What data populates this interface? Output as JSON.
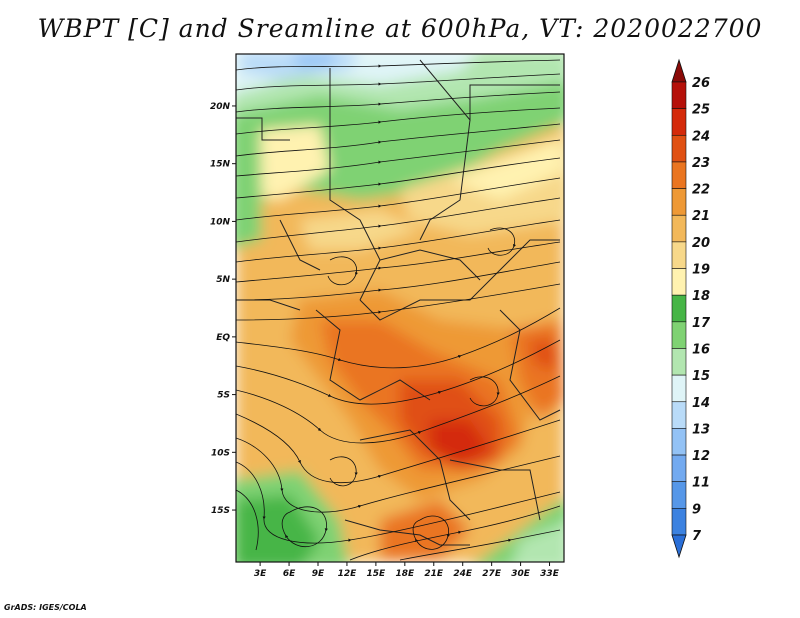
{
  "title": "WBPT [C] and Sreamline at 600hPa, VT: 2020022700",
  "credit": "GrADS: IGES/COLA",
  "map": {
    "lat_labels": [
      "20N",
      "15N",
      "10N",
      "5N",
      "EQ",
      "5S",
      "10S",
      "15S"
    ],
    "lon_labels": [
      "3E",
      "6E",
      "9E",
      "12E",
      "15E",
      "18E",
      "21E",
      "24E",
      "27E",
      "30E",
      "33E"
    ],
    "lon_range": [
      0.5,
      34.5
    ],
    "lat_range": [
      -19.5,
      24.5
    ],
    "field": "WBPT",
    "units": "C",
    "level": "600hPa",
    "streamlines": true
  },
  "colorbar": {
    "labels": [
      "7",
      "9",
      "11",
      "12",
      "13",
      "14",
      "15",
      "16",
      "17",
      "18",
      "19",
      "20",
      "21",
      "22",
      "23",
      "24",
      "25",
      "26"
    ],
    "colors": [
      "#2a6fd8",
      "#3c82e0",
      "#5697e8",
      "#73aaf0",
      "#93c2f5",
      "#b9dbf8",
      "#dff4f7",
      "#b2e6b0",
      "#7fd273",
      "#46b546",
      "#fff2b0",
      "#f7d88a",
      "#f2b85a",
      "#ee9936",
      "#ea7520",
      "#e05012",
      "#d42a0a",
      "#b51009",
      "#8a0a08"
    ]
  },
  "icons": {
    "colorbar_low": "triangle-down",
    "colorbar_high": "triangle-up"
  }
}
